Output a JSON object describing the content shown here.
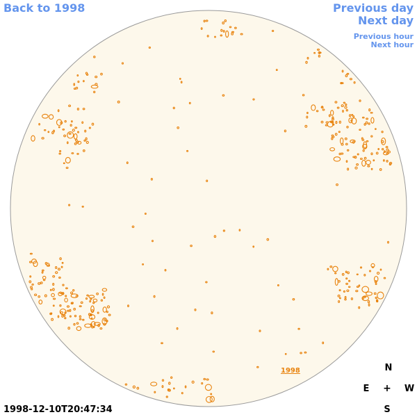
{
  "nav": {
    "back": "Back to 1998",
    "previous_day": "Previous day",
    "next_day": "Next day",
    "previous_hour": "Previous hour",
    "next_hour": "Next hour"
  },
  "disk": {
    "fill_color": "#fdf8eb",
    "edge_color": "#9a9a9a",
    "feature_color": "#e8820c",
    "year_label": "1998"
  },
  "compass": {
    "north": "N",
    "east": "E",
    "center": "+",
    "west": "W",
    "south": "S"
  },
  "timestamp": "1998-12-10T20:47:34",
  "colors": {
    "link": "#6495ed",
    "accent": "#e8820c"
  }
}
